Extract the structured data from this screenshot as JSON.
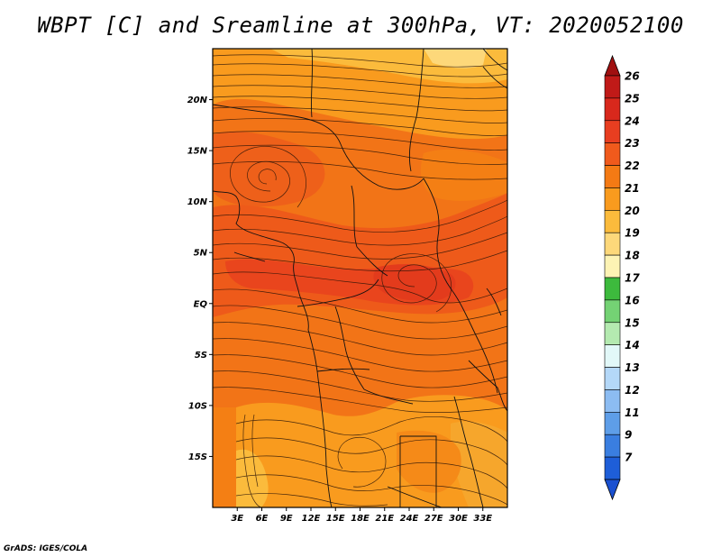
{
  "title": "WBPT [C] and Sreamline at 300hPa, VT: 2020052100",
  "credit": "GrADS: IGES/COLA",
  "map": {
    "lon_range": [
      0,
      36
    ],
    "lat_range": [
      -20,
      25
    ],
    "lat_ticks": [
      {
        "value": 20,
        "label": "20N"
      },
      {
        "value": 15,
        "label": "15N"
      },
      {
        "value": 10,
        "label": "10N"
      },
      {
        "value": 5,
        "label": "5N"
      },
      {
        "value": 0,
        "label": "EQ"
      },
      {
        "value": -5,
        "label": "5S"
      },
      {
        "value": -10,
        "label": "10S"
      },
      {
        "value": -15,
        "label": "15S"
      }
    ],
    "lon_ticks": [
      {
        "value": 3,
        "label": "3E"
      },
      {
        "value": 6,
        "label": "6E"
      },
      {
        "value": 9,
        "label": "9E"
      },
      {
        "value": 12,
        "label": "12E"
      },
      {
        "value": 15,
        "label": "15E"
      },
      {
        "value": 18,
        "label": "18E"
      },
      {
        "value": 21,
        "label": "21E"
      },
      {
        "value": 24,
        "label": "24E"
      },
      {
        "value": 27,
        "label": "27E"
      },
      {
        "value": 30,
        "label": "30E"
      },
      {
        "value": 33,
        "label": "33E"
      }
    ]
  },
  "colorbar": {
    "levels": [
      {
        "label": "26",
        "color": "#c01a18"
      },
      {
        "label": "25",
        "color": "#d8281c"
      },
      {
        "label": "24",
        "color": "#e83e20"
      },
      {
        "label": "23",
        "color": "#f05a1c"
      },
      {
        "label": "22",
        "color": "#f47a14"
      },
      {
        "label": "21",
        "color": "#f99b1e"
      },
      {
        "label": "20",
        "color": "#fbbb3c"
      },
      {
        "label": "19",
        "color": "#fdd87a"
      },
      {
        "label": "18",
        "color": "#fdf3b4"
      },
      {
        "label": "17",
        "color": "#3dba3d"
      },
      {
        "label": "16",
        "color": "#74d274"
      },
      {
        "label": "15",
        "color": "#b4eab0"
      },
      {
        "label": "14",
        "color": "#e2f8f8"
      },
      {
        "label": "13",
        "color": "#b4d8f8"
      },
      {
        "label": "12",
        "color": "#8cbcf2"
      },
      {
        "label": "11",
        "color": "#5e9ee8"
      },
      {
        "label": "9",
        "color": "#3a7ee0"
      },
      {
        "label": "7",
        "color": "#1e5ed8"
      }
    ],
    "top_arrow_color": "#a01010",
    "bottom_arrow_color": "#1a50d0"
  }
}
